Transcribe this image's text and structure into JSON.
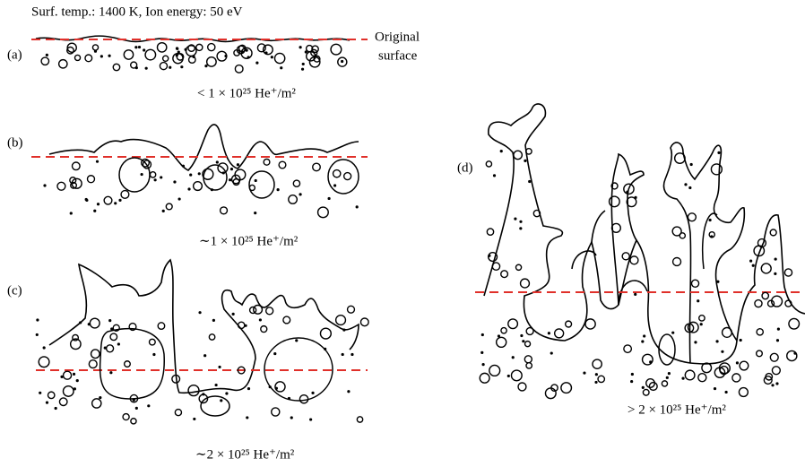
{
  "header": {
    "title": "Surf. temp.: 1400 K, Ion energy: 50 eV"
  },
  "annotation": {
    "line1": "Original",
    "line2": "surface"
  },
  "panels": [
    {
      "label": "(a)",
      "fluence": "< 1 × 10²⁵ He⁺/m²"
    },
    {
      "label": "(b)",
      "fluence": "∼1 × 10²⁵ He⁺/m²"
    },
    {
      "label": "(c)",
      "fluence": "∼2 × 10²⁵ He⁺/m²"
    },
    {
      "label": "(d)",
      "fluence": "> 2 × 10²⁵ He⁺/m²"
    }
  ]
}
